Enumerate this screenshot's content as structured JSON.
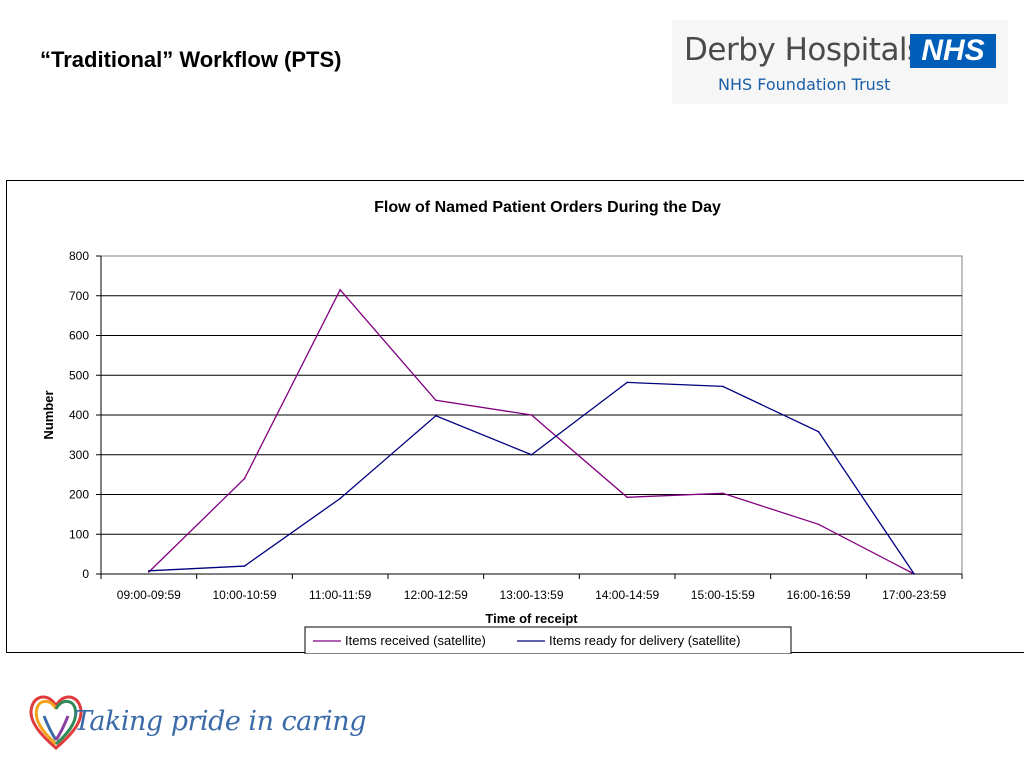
{
  "slide": {
    "title": "“Traditional” Workflow (PTS)"
  },
  "logo": {
    "name": "Derby Hospitals",
    "badge": "NHS",
    "subtitle": "NHS Foundation Trust",
    "colors": {
      "badge": "#005eb8",
      "name": "#4a4a4a",
      "subtitle": "#1b5fa8"
    }
  },
  "tagline": {
    "text": "Taking pride in caring",
    "icon": "heart-ribbon-icon"
  },
  "chart_data": {
    "type": "line",
    "title": "Flow of Named Patient Orders During the Day",
    "xlabel": "Time of receipt",
    "ylabel": "Number",
    "categories": [
      "09:00-09:59",
      "10:00-10:59",
      "11:00-11:59",
      "12:00-12:59",
      "13:00-13:59",
      "14:00-14:59",
      "15:00-15:59",
      "16:00-16:59",
      "17:00-23:59"
    ],
    "yticks": [
      0,
      100,
      200,
      300,
      400,
      500,
      600,
      700,
      800
    ],
    "ylim": [
      0,
      800
    ],
    "grid": true,
    "legend": "bottom-center",
    "series": [
      {
        "name": "Items received (satellite)",
        "color": "#800080",
        "values": [
          5,
          240,
          715,
          437,
          400,
          193,
          203,
          125,
          0
        ]
      },
      {
        "name": "Items ready for delivery (satellite)",
        "color": "#000080",
        "values": [
          8,
          20,
          190,
          398,
          300,
          482,
          472,
          358,
          0
        ]
      }
    ]
  }
}
